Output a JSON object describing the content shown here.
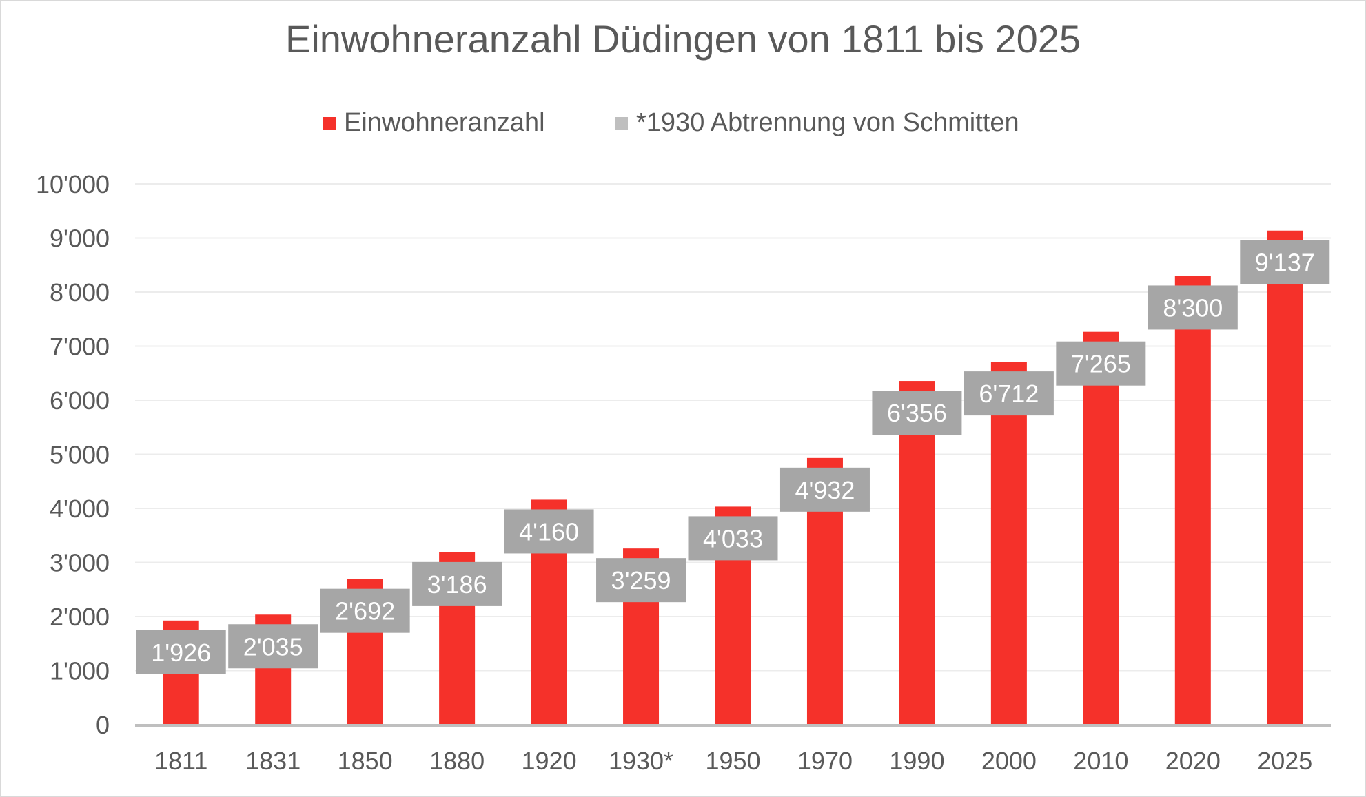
{
  "chart_data": {
    "type": "bar",
    "title": "Einwohneranzahl Düdingen von 1811 bis 2025",
    "legend": [
      {
        "label": "Einwohneranzahl",
        "color": "#f5312a"
      },
      {
        "label": "*1930 Abtrennung von Schmitten",
        "color": "#bfbfbf"
      }
    ],
    "legend_position": "top",
    "categories": [
      "1811",
      "1831",
      "1850",
      "1880",
      "1920",
      "1930*",
      "1950",
      "1970",
      "1990",
      "2000",
      "2010",
      "2020",
      "2025"
    ],
    "values": [
      1926,
      2035,
      2692,
      3186,
      4160,
      3259,
      4033,
      4932,
      6356,
      6712,
      7265,
      8300,
      9137
    ],
    "data_labels": [
      "1'926",
      "2'035",
      "2'692",
      "3'186",
      "4'160",
      "3'259",
      "4'033",
      "4'932",
      "6'356",
      "6'712",
      "7'265",
      "8'300",
      "9'137"
    ],
    "y_ticks": [
      0,
      1000,
      2000,
      3000,
      4000,
      5000,
      6000,
      7000,
      8000,
      9000,
      10000
    ],
    "y_tick_labels": [
      "0",
      "1'000",
      "2'000",
      "3'000",
      "4'000",
      "5'000",
      "6'000",
      "7'000",
      "8'000",
      "9'000",
      "10'000"
    ],
    "ylim": [
      0,
      10000
    ],
    "xlabel": "",
    "ylabel": "",
    "grid": true,
    "colors": {
      "bar": "#f5312a",
      "label_box": "#a6a6a6",
      "label_text": "#ffffff",
      "text": "#595959",
      "grid": "#ececec",
      "axis": "#bfbfbf"
    }
  }
}
